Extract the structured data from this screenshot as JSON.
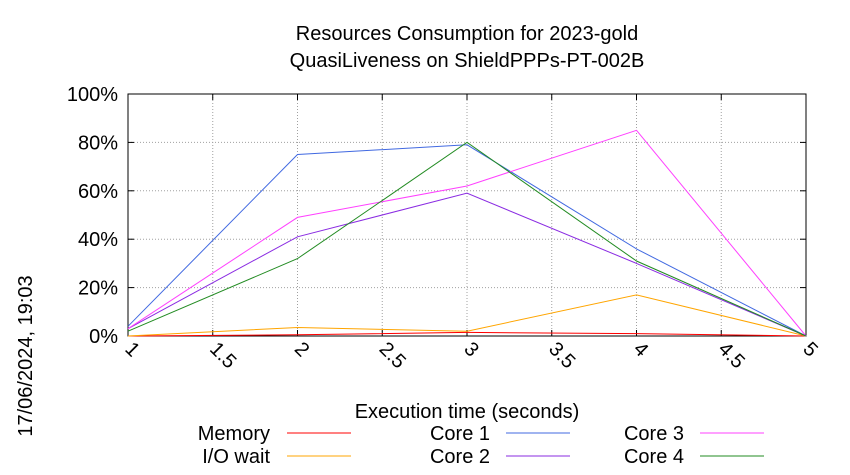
{
  "chart_data": {
    "type": "line",
    "title": "Resources Consumption for 2023-gold",
    "subtitle": "QuasiLiveness on ShieldPPPs-PT-002B",
    "xlabel": "Execution time (seconds)",
    "ylabel": "",
    "side_label": "17/06/2024, 19:03",
    "xlim": [
      1,
      5
    ],
    "ylim": [
      0,
      100
    ],
    "x_ticks": [
      "1",
      "1.5",
      "2",
      "2.5",
      "3",
      "3.5",
      "4",
      "4.5",
      "5"
    ],
    "y_ticks": [
      "0%",
      "20%",
      "40%",
      "60%",
      "80%",
      "100%"
    ],
    "grid": true,
    "legend_position": "bottom",
    "series": [
      {
        "name": "Memory",
        "color": "#ff0000",
        "x": [
          1,
          2,
          3,
          4,
          5
        ],
        "y": [
          0,
          0.5,
          1.5,
          1,
          0
        ]
      },
      {
        "name": "I/O wait",
        "color": "#ffa500",
        "x": [
          1,
          2,
          3,
          4,
          5
        ],
        "y": [
          0,
          3.5,
          2,
          17,
          0
        ]
      },
      {
        "name": "Core 1",
        "color": "#4169e1",
        "x": [
          1,
          2,
          3,
          4,
          5
        ],
        "y": [
          4,
          75,
          79,
          36,
          0
        ]
      },
      {
        "name": "Core 2",
        "color": "#8a2be2",
        "x": [
          1,
          2,
          3,
          4,
          5
        ],
        "y": [
          3,
          41,
          59,
          30,
          0
        ]
      },
      {
        "name": "Core 3",
        "color": "#ff40ff",
        "x": [
          1,
          2,
          3,
          4,
          5
        ],
        "y": [
          3,
          49,
          62,
          85,
          0
        ]
      },
      {
        "name": "Core 4",
        "color": "#228b22",
        "x": [
          1,
          2,
          3,
          4,
          5
        ],
        "y": [
          2,
          32,
          80,
          31,
          0
        ]
      }
    ]
  }
}
